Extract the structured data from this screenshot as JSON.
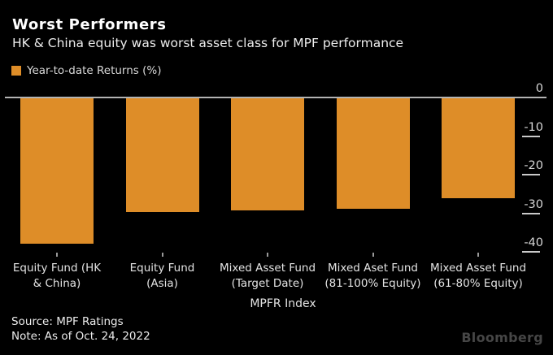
{
  "chart_data": {
    "type": "bar",
    "title": "Worst Performers",
    "subtitle": "HK & China equity was worst asset class for MPF performance",
    "legend_label": "Year-to-date Returns (%)",
    "legend_position": "top-left",
    "categories": [
      "Equity Fund (HK & China)",
      "Equity Fund (Asia)",
      "Mixed Asset Fund (Target Date)",
      "Mixed Aset Fund (81-100% Equity)",
      "Mixed Asset Fund (61-80% Equity)"
    ],
    "category_lines": [
      [
        "Equity Fund (HK",
        "& China)"
      ],
      [
        "Equity Fund",
        "(Asia)"
      ],
      [
        "Mixed Asset Fund",
        "(Target Date)"
      ],
      [
        "Mixed Aset Fund",
        "(81-100% Equity)"
      ],
      [
        "Mixed Asset Fund",
        "(61-80% Equity)"
      ]
    ],
    "values": [
      -37.9,
      -29.6,
      -29.3,
      -28.8,
      -26.0
    ],
    "xlabel": "MPFR Index",
    "ylabel": "",
    "yticks": [
      0,
      -10,
      -20,
      -30,
      -40
    ],
    "ylim": [
      -42,
      0
    ],
    "grid": false,
    "bar_color": "#de8d28"
  },
  "footer": {
    "source": "Source: MPF Ratings",
    "note": "Note: As of Oct. 24, 2022",
    "brand": "Bloomberg"
  },
  "colors": {
    "background": "#000000",
    "bar": "#de8d28",
    "title": "#ffffff",
    "subtitle": "#ededed",
    "axis_text": "#d6d6d6",
    "axis_line": "#b3b3b3",
    "brand": "#464646"
  }
}
